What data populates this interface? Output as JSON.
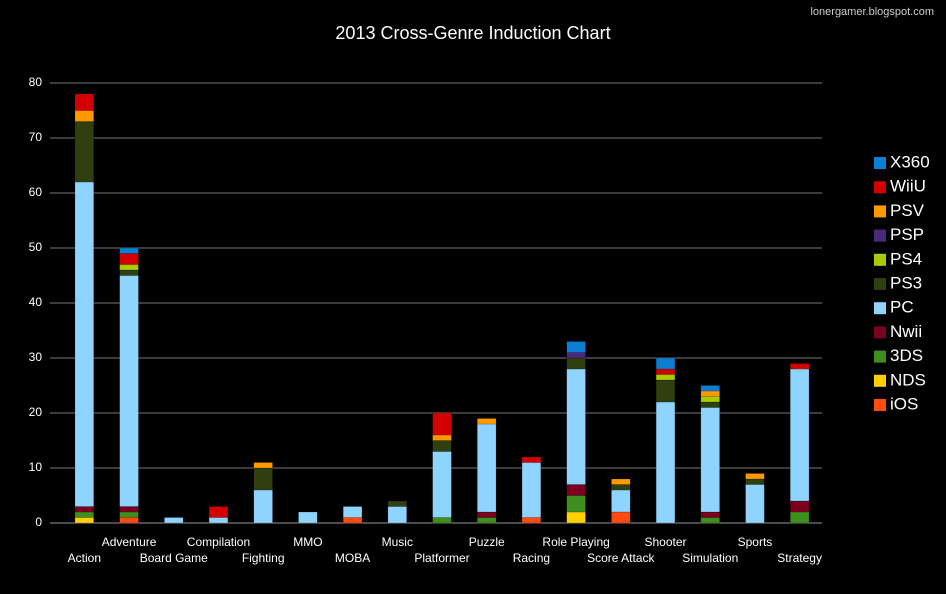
{
  "chart_data": {
    "type": "stacked_bar",
    "title": "2013 Cross-Genre Induction Chart",
    "watermark": "lonergamer.blogspot.com",
    "categories": [
      "Action",
      "Adventure",
      "Board Game",
      "Compilation",
      "Fighting",
      "MMO",
      "MOBA",
      "Music",
      "Platformer",
      "Puzzle",
      "Racing",
      "Role Playing",
      "Score Attack",
      "Shooter",
      "Simulation",
      "Sports",
      "Strategy"
    ],
    "series": [
      {
        "name": "iOS",
        "color": "#ff4a10",
        "values": [
          0,
          1,
          0,
          0,
          0,
          0,
          1,
          0,
          0,
          0,
          1,
          0,
          2,
          0,
          0,
          0,
          0
        ]
      },
      {
        "name": "NDS",
        "color": "#ffd000",
        "values": [
          1,
          0,
          0,
          0,
          0,
          0,
          0,
          0,
          0,
          0,
          0,
          2,
          0,
          0,
          0,
          0,
          0
        ]
      },
      {
        "name": "3DS",
        "color": "#3f8f1f",
        "values": [
          1,
          1,
          0,
          0,
          0,
          0,
          0,
          0,
          1,
          1,
          0,
          3,
          0,
          0,
          1,
          0,
          2
        ]
      },
      {
        "name": "Nwii",
        "color": "#7a0020",
        "values": [
          1,
          1,
          0,
          0,
          0,
          0,
          0,
          0,
          0,
          1,
          0,
          2,
          0,
          0,
          1,
          0,
          2
        ]
      },
      {
        "name": "PC",
        "color": "#8fd3ff",
        "values": [
          59,
          42,
          1,
          1,
          6,
          2,
          2,
          3,
          12,
          16,
          10,
          21,
          4,
          22,
          19,
          7,
          24
        ]
      },
      {
        "name": "PS3",
        "color": "#2f3f10",
        "values": [
          11,
          1,
          0,
          0,
          4,
          0,
          0,
          1,
          2,
          0,
          0,
          2,
          1,
          4,
          1,
          1,
          0
        ]
      },
      {
        "name": "PS4",
        "color": "#a8cc00",
        "values": [
          0,
          1,
          0,
          0,
          0,
          0,
          0,
          0,
          0,
          0,
          0,
          0,
          0,
          1,
          1,
          0,
          0
        ]
      },
      {
        "name": "PSP",
        "color": "#4b2a7b",
        "values": [
          0,
          0,
          0,
          0,
          0,
          0,
          0,
          0,
          0,
          0,
          0,
          1,
          0,
          0,
          0,
          0,
          0
        ]
      },
      {
        "name": "PSV",
        "color": "#ff9900",
        "values": [
          2,
          0,
          0,
          0,
          1,
          0,
          0,
          0,
          1,
          1,
          0,
          0,
          1,
          0,
          1,
          1,
          0
        ]
      },
      {
        "name": "WiiU",
        "color": "#d40000",
        "values": [
          3,
          2,
          0,
          2,
          0,
          0,
          0,
          0,
          4,
          0,
          1,
          0,
          0,
          1,
          0,
          0,
          1
        ]
      },
      {
        "name": "X360",
        "color": "#0b7fd4",
        "values": [
          0,
          1,
          0,
          0,
          0,
          0,
          0,
          0,
          0,
          0,
          0,
          2,
          0,
          2,
          1,
          0,
          0
        ]
      }
    ],
    "ylim": [
      0,
      80
    ],
    "yticks": [
      0,
      10,
      20,
      30,
      40,
      50,
      60,
      70,
      80
    ],
    "grid": true,
    "legend": "right"
  }
}
